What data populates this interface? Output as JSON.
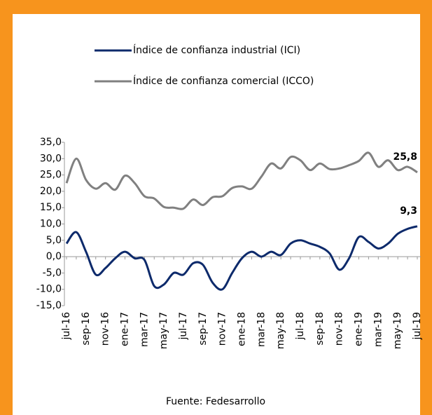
{
  "chart_data": {
    "type": "line",
    "categories": [
      "jul-16",
      null,
      "sep-16",
      null,
      "nov-16",
      null,
      "ene-17",
      null,
      "mar-17",
      null,
      "may-17",
      null,
      "jul-17",
      null,
      "sep-17",
      null,
      "nov-17",
      null,
      "ene-18",
      null,
      "mar-18",
      null,
      "may-18",
      null,
      "jul-18",
      null,
      "sep-18",
      null,
      "nov-18",
      null,
      "ene-19",
      null,
      "mar-19",
      null,
      "may-19",
      null,
      "jul-19"
    ],
    "series": [
      {
        "name": "Índice de confianza industrial (ICI)",
        "color": "#0d2a6b",
        "values": [
          4,
          7.5,
          1.5,
          -5.5,
          -3.5,
          -0.5,
          1.5,
          -0.5,
          -1,
          -9,
          -8.5,
          -5,
          -5.5,
          -2,
          -2.5,
          -8,
          -10,
          -5,
          -0.5,
          1.5,
          0,
          1.5,
          0.5,
          4,
          5,
          4,
          3,
          1,
          -4,
          -0.5,
          6,
          4.5,
          2.5,
          4,
          7,
          8.5,
          9.3
        ],
        "value_labels": [
          null,
          null,
          null,
          null,
          null,
          null,
          null,
          null,
          null,
          null,
          null,
          null,
          null,
          null,
          null,
          null,
          null,
          null,
          null,
          null,
          null,
          null,
          null,
          null,
          null,
          null,
          null,
          null,
          null,
          null,
          null,
          null,
          null,
          null,
          null,
          null,
          "9,3"
        ]
      },
      {
        "name": "Índice de confianza comercial (ICCO)",
        "color": "#808080",
        "values": [
          22.5,
          30,
          23.5,
          20.8,
          22.5,
          20.5,
          24.8,
          22.5,
          18.5,
          17.8,
          15.2,
          15,
          14.7,
          17.5,
          15.8,
          18.2,
          18.5,
          21,
          21.5,
          20.8,
          24.5,
          28.5,
          27,
          30.5,
          29.5,
          26.5,
          28.5,
          26.8,
          27,
          28,
          29.3,
          31.8,
          27.5,
          29.5,
          26.5,
          27.5,
          25.8
        ],
        "value_labels": [
          null,
          null,
          null,
          null,
          null,
          null,
          null,
          null,
          null,
          null,
          null,
          null,
          null,
          null,
          null,
          null,
          null,
          null,
          null,
          null,
          null,
          null,
          null,
          null,
          null,
          null,
          null,
          null,
          null,
          null,
          null,
          null,
          null,
          null,
          null,
          null,
          "25,8"
        ]
      }
    ],
    "ylim": [
      -15,
      35
    ],
    "yticks": [
      {
        "value": -15,
        "label": "-15,0"
      },
      {
        "value": -10,
        "label": "-10,0"
      },
      {
        "value": -5,
        "label": "-5,0"
      },
      {
        "value": 0,
        "label": "0,0"
      },
      {
        "value": 5,
        "label": "5,0"
      },
      {
        "value": 10,
        "label": "10,0"
      },
      {
        "value": 15,
        "label": "15,0"
      },
      {
        "value": 20,
        "label": "20,0"
      },
      {
        "value": 25,
        "label": "25,0"
      },
      {
        "value": 30,
        "label": "30,0"
      },
      {
        "value": 35,
        "label": "35,0"
      }
    ],
    "source": "Fuente: Fedesarrollo"
  }
}
